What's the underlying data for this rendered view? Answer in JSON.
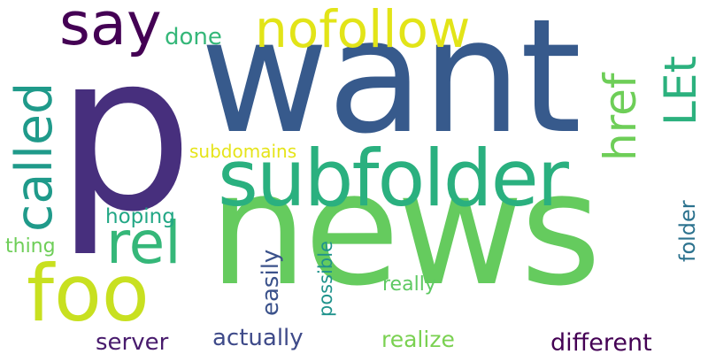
{
  "words": [
    {
      "text": "p",
      "color": "#472f7d",
      "orientation": "horizontal"
    },
    {
      "text": "want",
      "color": "#375a8c",
      "orientation": "horizontal"
    },
    {
      "text": "news",
      "color": "#65cb5e",
      "orientation": "horizontal"
    },
    {
      "text": "subfolder",
      "color": "#2ab07f",
      "orientation": "horizontal"
    },
    {
      "text": "nofollow",
      "color": "#e2e418",
      "orientation": "horizontal"
    },
    {
      "text": "say",
      "color": "#440154",
      "orientation": "horizontal"
    },
    {
      "text": "foo",
      "color": "#c8e020",
      "orientation": "horizontal"
    },
    {
      "text": "called",
      "color": "#1f9a8a",
      "orientation": "vertical"
    },
    {
      "text": "rel",
      "color": "#35b779",
      "orientation": "horizontal"
    },
    {
      "text": "href",
      "color": "#6ece58",
      "orientation": "vertical"
    },
    {
      "text": "LEt",
      "color": "#2cb17e",
      "orientation": "vertical"
    },
    {
      "text": "done",
      "color": "#35b779",
      "orientation": "horizontal"
    },
    {
      "text": "subdomains",
      "color": "#e5e419",
      "orientation": "horizontal"
    },
    {
      "text": "hoping",
      "color": "#22a785",
      "orientation": "horizontal"
    },
    {
      "text": "thing",
      "color": "#6ece58",
      "orientation": "horizontal"
    },
    {
      "text": "easily",
      "color": "#3b528b",
      "orientation": "vertical"
    },
    {
      "text": "possible",
      "color": "#20938c",
      "orientation": "vertical"
    },
    {
      "text": "really",
      "color": "#5ec962",
      "orientation": "horizontal"
    },
    {
      "text": "folder",
      "color": "#2c728e",
      "orientation": "vertical"
    },
    {
      "text": "server",
      "color": "#481b6d",
      "orientation": "horizontal"
    },
    {
      "text": "actually",
      "color": "#3e4a89",
      "orientation": "horizontal"
    },
    {
      "text": "realize",
      "color": "#7ad151",
      "orientation": "horizontal"
    },
    {
      "text": "different",
      "color": "#440154",
      "orientation": "horizontal"
    }
  ]
}
